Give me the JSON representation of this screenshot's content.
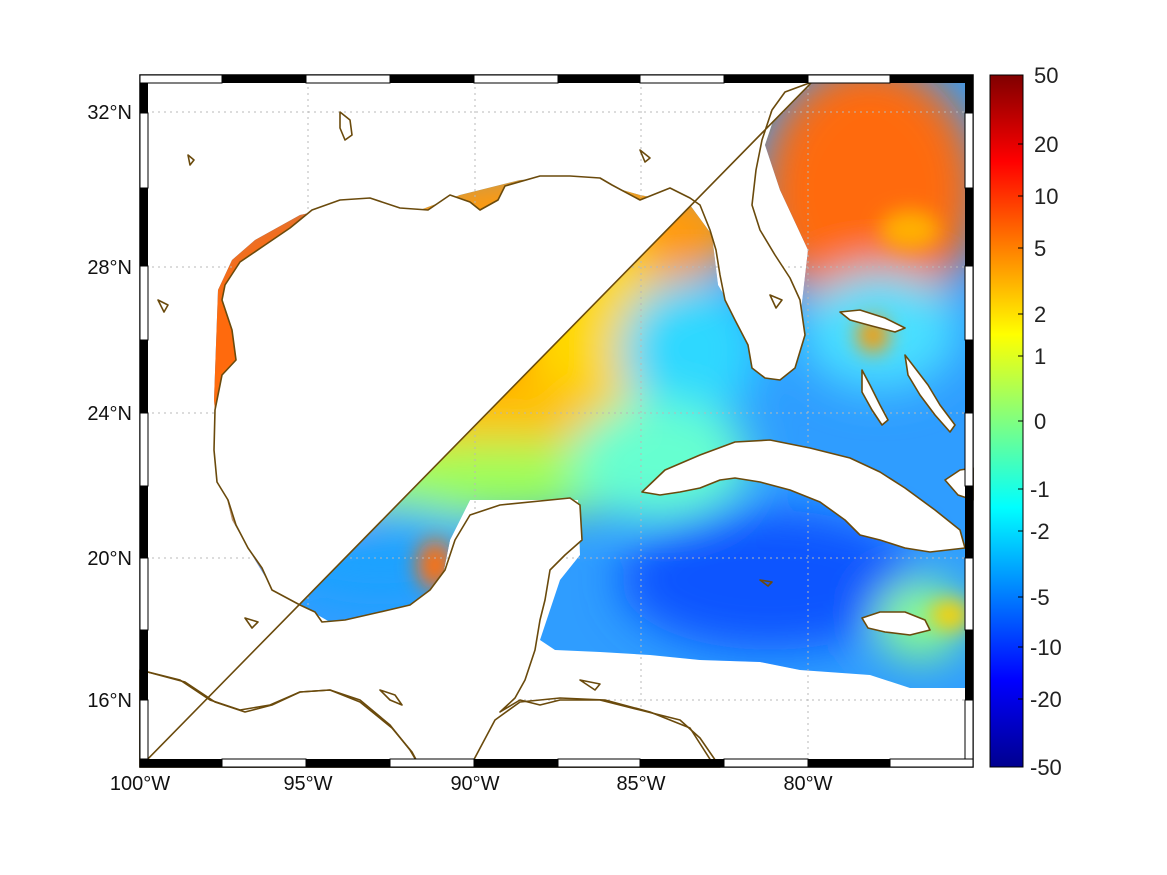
{
  "map": {
    "region": "Gulf of Mexico",
    "lon_range": [
      -100,
      -75
    ],
    "lat_range": [
      14,
      33
    ],
    "lon_ticks": [
      {
        "value": -100,
        "label": "100°W"
      },
      {
        "value": -95,
        "label": "95°W"
      },
      {
        "value": -90,
        "label": "90°W"
      },
      {
        "value": -85,
        "label": "85°W"
      },
      {
        "value": -80,
        "label": "80°W"
      }
    ],
    "lat_ticks": [
      {
        "value": 32,
        "label": "32°N"
      },
      {
        "value": 28,
        "label": "28°N"
      },
      {
        "value": 24,
        "label": "24°N"
      },
      {
        "value": 20,
        "label": "20°N"
      },
      {
        "value": 16,
        "label": "16°N"
      }
    ],
    "coastline_color": "#6a4a0c"
  },
  "colorbar": {
    "colormap": "jet",
    "scale": "symmetric-log",
    "labels": [
      "50",
      "20",
      "10",
      "5",
      "2",
      "1",
      "0",
      "-1",
      "-2",
      "-5",
      "-10",
      "-20",
      "-50"
    ]
  }
}
